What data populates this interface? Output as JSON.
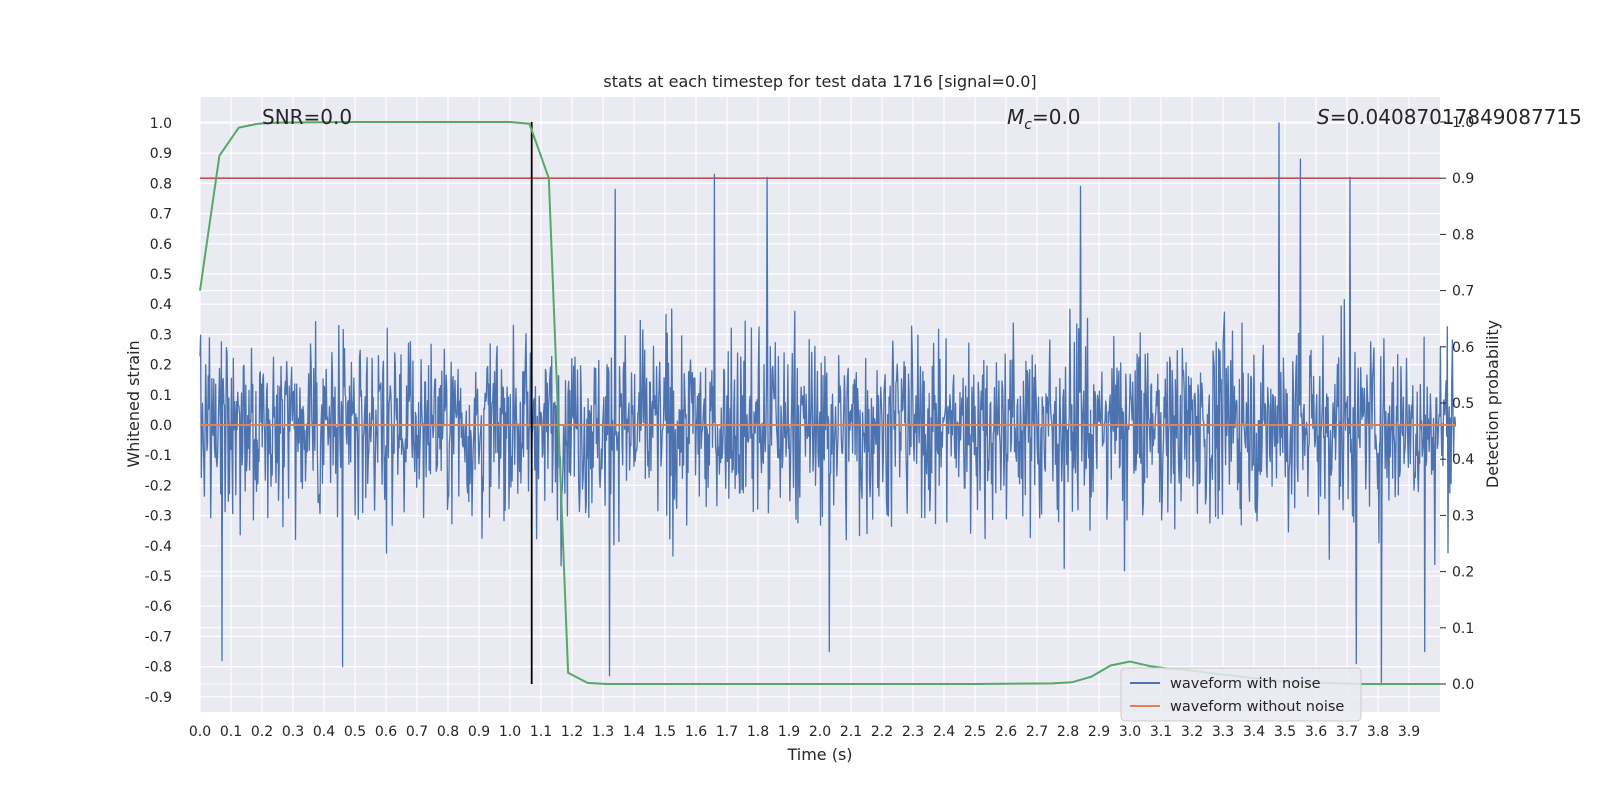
{
  "chart_data": {
    "type": "line",
    "title": "stats at each timestep for test data 1716 [signal=0.0]",
    "xlabel": "Time (s)",
    "ylabel": "Whitened strain",
    "y2label": "Detection probability",
    "xlim": [
      0.0,
      4.05
    ],
    "ylim": [
      -0.95,
      1.08
    ],
    "y2lim": [
      -0.045,
      1.045
    ],
    "xticks": [
      "0.0",
      "0.1",
      "0.2",
      "0.3",
      "0.4",
      "0.5",
      "0.6",
      "0.7",
      "0.8",
      "0.9",
      "1.0",
      "1.1",
      "1.2",
      "1.3",
      "1.4",
      "1.5",
      "1.6",
      "1.7",
      "1.8",
      "1.9",
      "2.0",
      "2.1",
      "2.2",
      "2.3",
      "2.4",
      "2.5",
      "2.6",
      "2.7",
      "2.8",
      "2.9",
      "3.0",
      "3.1",
      "3.2",
      "3.3",
      "3.4",
      "3.5",
      "3.6",
      "3.7",
      "3.8",
      "3.9"
    ],
    "yticks": [
      "1.0",
      "0.9",
      "0.8",
      "0.7",
      "0.6",
      "0.5",
      "0.4",
      "0.3",
      "0.2",
      "0.1",
      "0.0",
      "-0.1",
      "-0.2",
      "-0.3",
      "-0.4",
      "-0.5",
      "-0.6",
      "-0.7",
      "-0.8",
      "-0.9"
    ],
    "y2ticks": [
      "1.0",
      "0.9",
      "0.8",
      "0.7",
      "0.6",
      "0.5",
      "0.4",
      "0.3",
      "0.2",
      "0.1",
      "0.0"
    ],
    "annotations": {
      "snr": "SNR=0.0",
      "mc_symbol": "M",
      "mc_sub": "c",
      "mc_value": "=0.0",
      "s_symbol": "S",
      "s_value": "=0.04087017849087715"
    },
    "threshold": 0.9,
    "event_time": 1.07,
    "series": [
      {
        "name": "waveform with noise",
        "color": "#4c72b0",
        "generator": "noise",
        "samples": 2000,
        "typical_range": [
          -0.45,
          0.45
        ],
        "peaks": [
          {
            "x": 3.48,
            "y": 1.0
          },
          {
            "x": 3.55,
            "y": 0.88
          },
          {
            "x": 1.66,
            "y": 0.83
          },
          {
            "x": 1.83,
            "y": 0.82
          },
          {
            "x": 3.71,
            "y": 0.82
          },
          {
            "x": 1.34,
            "y": 0.78
          },
          {
            "x": 2.84,
            "y": 0.79
          },
          {
            "x": 3.81,
            "y": -0.86
          },
          {
            "x": 1.32,
            "y": -0.83
          },
          {
            "x": 0.46,
            "y": -0.8
          },
          {
            "x": 0.07,
            "y": -0.78
          },
          {
            "x": 2.03,
            "y": -0.75
          },
          {
            "x": 3.73,
            "y": -0.79
          },
          {
            "x": 3.95,
            "y": -0.75
          }
        ]
      },
      {
        "name": "waveform without noise",
        "color": "#dd8452",
        "x": [
          0.0,
          4.05
        ],
        "y": [
          0.0,
          0.0
        ]
      },
      {
        "name": "detection probability",
        "color": "#55a868",
        "axis": "right",
        "x": [
          0.0,
          0.0625,
          0.125,
          0.1875,
          0.25,
          0.5,
          0.75,
          1.0,
          1.0625,
          1.125,
          1.1875,
          1.25,
          1.3125,
          1.375,
          1.5,
          2.0,
          2.5,
          2.75,
          2.8125,
          2.875,
          2.9375,
          3.0,
          3.0625,
          3.125,
          3.1875,
          3.25,
          3.5,
          3.75,
          4.0
        ],
        "y": [
          0.7,
          0.94,
          0.99,
          0.997,
          0.999,
          1.0,
          1.0,
          1.0,
          0.997,
          0.9,
          0.02,
          0.002,
          0.0,
          0.0,
          0.0,
          0.0,
          0.0,
          0.001,
          0.003,
          0.013,
          0.033,
          0.04,
          0.032,
          0.027,
          0.025,
          0.02,
          0.004,
          0.0,
          0.0
        ]
      }
    ],
    "legend": {
      "placement": "lower-right",
      "entries": [
        {
          "label": "waveform with noise",
          "color": "#4c72b0"
        },
        {
          "label": "waveform without noise",
          "color": "#dd8452"
        }
      ]
    },
    "colors": {
      "background": "#eaeaf2",
      "grid": "#ffffff",
      "threshold": "#c44e52",
      "event_line": "#000000"
    }
  }
}
